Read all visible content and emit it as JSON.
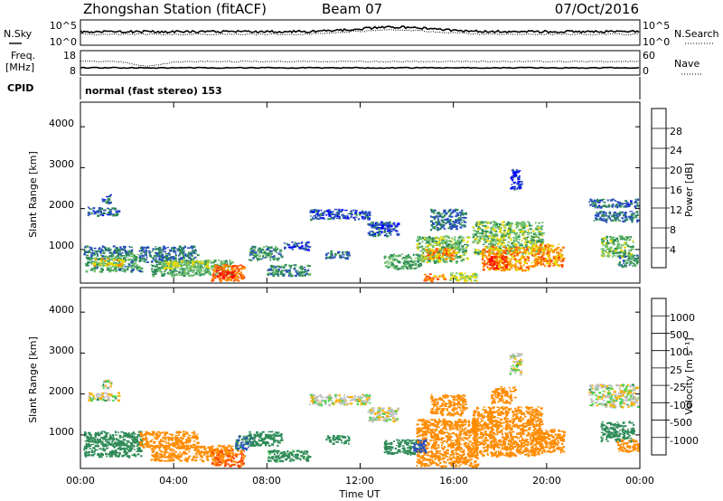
{
  "header": {
    "station": "Zhongshan Station (fitACF)",
    "beam": "Beam 07",
    "date": "07/Oct/2016"
  },
  "noise_panel": {
    "left_label": "N.Sky",
    "right_label": "N.Search",
    "left_ticks": [
      "10^5",
      "10^0"
    ],
    "right_ticks": [
      "10^5",
      "10^0"
    ]
  },
  "freq_panel": {
    "left_label_1": "Freq.",
    "left_label_2": "[MHz]",
    "right_label": "Nave",
    "left_ticks": [
      "18",
      "8"
    ],
    "right_ticks": [
      "60",
      "0"
    ]
  },
  "cpid": {
    "label": "CPID",
    "text": "normal (fast stereo) 153"
  },
  "time_axis": {
    "label": "Time UT",
    "ticks": [
      "00:00",
      "04:00",
      "08:00",
      "12:00",
      "16:00",
      "20:00",
      "00:00"
    ]
  },
  "power_panel": {
    "ylabel": "Slant Range [km]",
    "yticks": [
      "4000",
      "3000",
      "2000",
      "1000"
    ],
    "colorbar_label": "Power [dB]",
    "colorbar_ticks": [
      "28",
      "24",
      "20",
      "16",
      "12",
      "8",
      "4"
    ],
    "colorbar_colors": [
      "#0000ff",
      "#2a4fbe",
      "#2e8b57",
      "#6cbf6c",
      "#e8d800",
      "#ff8c00",
      "#ff4500",
      "#ff0000"
    ]
  },
  "velocity_panel": {
    "ylabel": "Slant Range [km]",
    "yticks": [
      "4000",
      "3000",
      "2000",
      "1000"
    ],
    "colorbar_label": "Velocity [m s⁻¹]",
    "colorbar_ticks": [
      "1000",
      "500",
      "100",
      "25",
      "-25",
      "-100",
      "-500",
      "-1000"
    ],
    "colorbar_colors": [
      "#ff0000",
      "#ff4500",
      "#ff8c00",
      "#ffb000",
      "#c0c0c0",
      "#4cd24c",
      "#2e8b57",
      "#2a4fbe",
      "#1f3fa5"
    ]
  },
  "chart_data": {
    "type": "heatmap",
    "x_range_hours": [
      0,
      24
    ],
    "y_range_km": [
      180,
      4600
    ],
    "power_regions": [
      {
        "t0": 0.3,
        "t1": 1.6,
        "r0": 1850,
        "r1": 2050,
        "dB": 9
      },
      {
        "t0": 0.9,
        "t1": 1.3,
        "r0": 2150,
        "r1": 2350,
        "dB": 8
      },
      {
        "t0": 0.1,
        "t1": 2.2,
        "r0": 900,
        "r1": 1100,
        "dB": 10
      },
      {
        "t0": 0.2,
        "t1": 2.6,
        "r0": 480,
        "r1": 900,
        "dB": 13
      },
      {
        "t0": 0.5,
        "t1": 1.8,
        "r0": 600,
        "r1": 800,
        "dB": 20
      },
      {
        "t0": 2.5,
        "t1": 5.0,
        "r0": 700,
        "r1": 1100,
        "dB": 10
      },
      {
        "t0": 3.0,
        "t1": 6.5,
        "r0": 380,
        "r1": 760,
        "dB": 14
      },
      {
        "t0": 3.5,
        "t1": 5.5,
        "r0": 560,
        "r1": 740,
        "dB": 18
      },
      {
        "t0": 5.6,
        "t1": 7.0,
        "r0": 250,
        "r1": 650,
        "dB": 26
      },
      {
        "t0": 5.8,
        "t1": 6.6,
        "r0": 300,
        "r1": 500,
        "dB": 30
      },
      {
        "t0": 7.2,
        "t1": 8.6,
        "r0": 750,
        "r1": 1100,
        "dB": 12
      },
      {
        "t0": 8.7,
        "t1": 9.8,
        "r0": 1000,
        "r1": 1200,
        "dB": 8
      },
      {
        "t0": 8.0,
        "t1": 9.8,
        "r0": 380,
        "r1": 650,
        "dB": 12
      },
      {
        "t0": 9.8,
        "t1": 12.4,
        "r0": 1750,
        "r1": 2000,
        "dB": 8
      },
      {
        "t0": 10.5,
        "t1": 11.5,
        "r0": 800,
        "r1": 1000,
        "dB": 10
      },
      {
        "t0": 12.3,
        "t1": 13.6,
        "r0": 1350,
        "r1": 1700,
        "dB": 8
      },
      {
        "t0": 13.0,
        "t1": 14.6,
        "r0": 550,
        "r1": 900,
        "dB": 14
      },
      {
        "t0": 14.4,
        "t1": 16.6,
        "r0": 700,
        "r1": 1350,
        "dB": 16
      },
      {
        "t0": 14.8,
        "t1": 16.0,
        "r0": 780,
        "r1": 1050,
        "dB": 24
      },
      {
        "t0": 15.0,
        "t1": 16.5,
        "r0": 1500,
        "r1": 2000,
        "dB": 10
      },
      {
        "t0": 14.7,
        "t1": 15.6,
        "r0": 250,
        "r1": 420,
        "dB": 24
      },
      {
        "t0": 15.8,
        "t1": 17.0,
        "r0": 250,
        "r1": 450,
        "dB": 18
      },
      {
        "t0": 16.8,
        "t1": 19.8,
        "r0": 900,
        "r1": 1700,
        "dB": 16
      },
      {
        "t0": 17.2,
        "t1": 19.2,
        "r0": 500,
        "r1": 1100,
        "dB": 24
      },
      {
        "t0": 17.5,
        "t1": 18.3,
        "r0": 550,
        "r1": 850,
        "dB": 30
      },
      {
        "t0": 19.3,
        "t1": 20.7,
        "r0": 600,
        "r1": 1150,
        "dB": 24
      },
      {
        "t0": 18.4,
        "t1": 18.9,
        "r0": 2500,
        "r1": 3000,
        "dB": 6
      },
      {
        "t0": 21.8,
        "t1": 23.9,
        "r0": 2050,
        "r1": 2250,
        "dB": 9
      },
      {
        "t0": 22.0,
        "t1": 23.9,
        "r0": 1700,
        "r1": 1950,
        "dB": 10
      },
      {
        "t0": 22.3,
        "t1": 23.7,
        "r0": 850,
        "r1": 1350,
        "dB": 16
      },
      {
        "t0": 23.0,
        "t1": 23.9,
        "r0": 600,
        "r1": 900,
        "dB": 12
      }
    ],
    "velocity_regions": [
      {
        "t0": 0.3,
        "t1": 1.6,
        "r0": 1850,
        "r1": 2050,
        "v": 10
      },
      {
        "t0": 0.9,
        "t1": 1.3,
        "r0": 2150,
        "r1": 2350,
        "v": 10
      },
      {
        "t0": 0.1,
        "t1": 2.6,
        "r0": 480,
        "r1": 1100,
        "v": 120
      },
      {
        "t0": 2.5,
        "t1": 5.0,
        "r0": 700,
        "r1": 1100,
        "v": -150
      },
      {
        "t0": 3.0,
        "t1": 6.5,
        "r0": 380,
        "r1": 760,
        "v": -200
      },
      {
        "t0": 5.6,
        "t1": 7.0,
        "r0": 250,
        "r1": 650,
        "v": -300
      },
      {
        "t0": 6.6,
        "t1": 7.4,
        "r0": 650,
        "r1": 1000,
        "v": 300
      },
      {
        "t0": 7.2,
        "t1": 8.6,
        "r0": 750,
        "r1": 1100,
        "v": 150
      },
      {
        "t0": 8.0,
        "t1": 9.8,
        "r0": 380,
        "r1": 650,
        "v": 110
      },
      {
        "t0": 9.8,
        "t1": 12.4,
        "r0": 1750,
        "r1": 2000,
        "v": 0
      },
      {
        "t0": 10.5,
        "t1": 11.5,
        "r0": 800,
        "r1": 1000,
        "v": 110
      },
      {
        "t0": 12.3,
        "t1": 13.6,
        "r0": 1350,
        "r1": 1700,
        "v": 5
      },
      {
        "t0": 13.0,
        "t1": 14.6,
        "r0": 550,
        "r1": 900,
        "v": 120
      },
      {
        "t0": 14.4,
        "t1": 17.0,
        "r0": 250,
        "r1": 1400,
        "v": -180
      },
      {
        "t0": 15.0,
        "t1": 16.5,
        "r0": 1500,
        "r1": 2000,
        "v": -150
      },
      {
        "t0": 14.2,
        "t1": 14.8,
        "r0": 600,
        "r1": 900,
        "v": 400
      },
      {
        "t0": 16.8,
        "t1": 19.8,
        "r0": 500,
        "r1": 1700,
        "v": -200
      },
      {
        "t0": 17.6,
        "t1": 18.6,
        "r0": 1800,
        "r1": 2200,
        "v": -120
      },
      {
        "t0": 19.3,
        "t1": 20.7,
        "r0": 600,
        "r1": 1150,
        "v": -150
      },
      {
        "t0": 18.4,
        "t1": 18.9,
        "r0": 2500,
        "r1": 3000,
        "v": 10
      },
      {
        "t0": 21.8,
        "t1": 23.9,
        "r0": 1700,
        "r1": 2250,
        "v": 5
      },
      {
        "t0": 22.3,
        "t1": 23.7,
        "r0": 850,
        "r1": 1350,
        "v": 120
      },
      {
        "t0": 23.0,
        "t1": 23.9,
        "r0": 600,
        "r1": 900,
        "v": -150
      }
    ]
  }
}
